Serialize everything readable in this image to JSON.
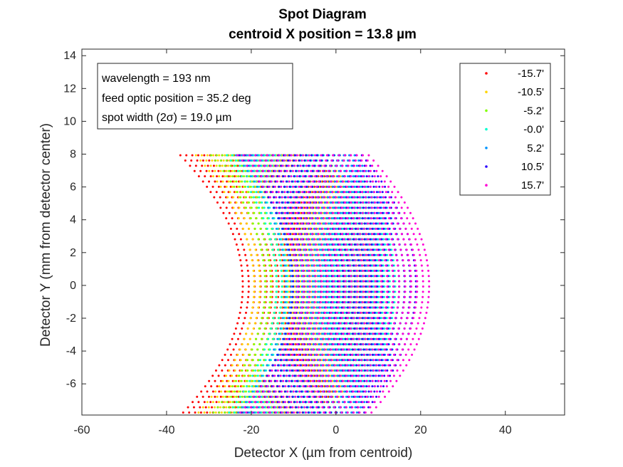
{
  "chart_data": {
    "type": "scatter",
    "title": "Spot Diagram",
    "subtitle": "centroid X position = 13.8 µm",
    "xlabel": "Detector X (µm from centroid)",
    "ylabel": "Detector Y (mm from detector center)",
    "xlim": [
      -60,
      54
    ],
    "ylim": [
      -7.9,
      14.4
    ],
    "xticks": [
      -60,
      -40,
      -20,
      0,
      20,
      40
    ],
    "yticks": [
      -6,
      -4,
      -2,
      0,
      2,
      4,
      6,
      8,
      10,
      12,
      14
    ],
    "grid": false,
    "legend_position": "top-right",
    "info_box": {
      "lines": [
        "wavelength = 193 nm",
        "feed optic position = 35.2 deg",
        "spot width (2σ) = 19.0 µm"
      ]
    },
    "series": [
      {
        "name": "-15.7'",
        "color": "#ff0000",
        "x_center": -6.5,
        "x_halfwidth": 15.5,
        "curvature": 15.0
      },
      {
        "name": "-10.5'",
        "color": "#ffd500",
        "x_center": -4.3,
        "x_halfwidth": 15.0,
        "curvature": 14.0
      },
      {
        "name": "-5.2'",
        "color": "#80ff00",
        "x_center": -2.2,
        "x_halfwidth": 14.5,
        "curvature": 13.0
      },
      {
        "name": "-0.0'",
        "color": "#00ffd0",
        "x_center": 0.0,
        "x_halfwidth": 14.0,
        "curvature": 12.0
      },
      {
        "name": "5.2'",
        "color": "#0095ff",
        "x_center": 2.2,
        "x_halfwidth": 14.0,
        "curvature": 12.0
      },
      {
        "name": "10.5'",
        "color": "#2a00ff",
        "x_center": 4.4,
        "x_halfwidth": 14.5,
        "curvature": 13.0
      },
      {
        "name": "15.7'",
        "color": "#ff00d5",
        "x_center": 6.5,
        "x_halfwidth": 15.5,
        "curvature": 14.5
      }
    ]
  }
}
